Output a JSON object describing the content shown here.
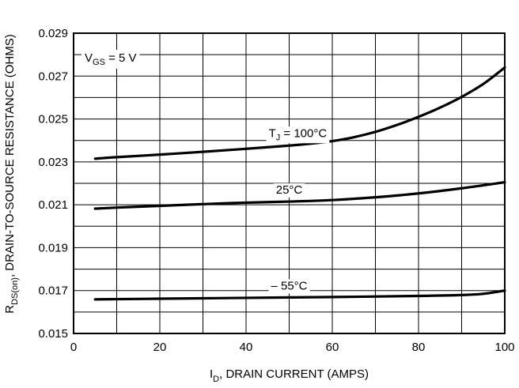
{
  "chart_data": {
    "type": "line",
    "xlabel": {
      "main": "I",
      "sub": "D",
      "rest": ", DRAIN CURRENT (AMPS)"
    },
    "ylabel": {
      "main": "R",
      "sub": "DS(on)",
      "rest": ", DRAIN-TO-SOURCE RESISTANCE (OHMS)"
    },
    "xlim": [
      0,
      100
    ],
    "ylim": [
      0.015,
      0.029
    ],
    "x_ticks": [
      0,
      20,
      40,
      60,
      80,
      100
    ],
    "x_tick_labels": [
      "0",
      "20",
      "40",
      "60",
      "80",
      "100"
    ],
    "y_ticks": [
      0.015,
      0.017,
      0.019,
      0.021,
      0.023,
      0.025,
      0.027,
      0.029
    ],
    "y_tick_labels": [
      "0.015",
      "0.017",
      "0.019",
      "0.021",
      "0.023",
      "0.025",
      "0.027",
      "0.029"
    ],
    "x_grid_step": 10,
    "y_grid_step": 0.001,
    "grid": true,
    "annotation": {
      "main": "V",
      "sub": "GS",
      "rest": " = 5 V"
    },
    "series": [
      {
        "name": "T_J = 100°C",
        "label": {
          "main": "T",
          "sub": "J",
          "rest": " = 100°C"
        },
        "x": [
          5,
          10,
          20,
          30,
          40,
          50,
          55,
          60,
          65,
          70,
          75,
          80,
          85,
          90,
          95,
          100
        ],
        "y": [
          0.02315,
          0.02322,
          0.02334,
          0.02347,
          0.02361,
          0.02376,
          0.02385,
          0.02397,
          0.02415,
          0.0244,
          0.02472,
          0.0251,
          0.02553,
          0.02603,
          0.02663,
          0.0274
        ]
      },
      {
        "name": "25°C",
        "label": {
          "main": "25°C",
          "sub": "",
          "rest": ""
        },
        "x": [
          5,
          10,
          20,
          30,
          40,
          50,
          60,
          70,
          80,
          90,
          100
        ],
        "y": [
          0.02082,
          0.02087,
          0.02095,
          0.02103,
          0.0211,
          0.02115,
          0.02122,
          0.02135,
          0.02153,
          0.02177,
          0.02205
        ]
      },
      {
        "name": "– 55°C",
        "label": {
          "main": "– 55°C",
          "sub": "",
          "rest": ""
        },
        "x": [
          5,
          20,
          40,
          60,
          80,
          90,
          95,
          100
        ],
        "y": [
          0.01659,
          0.01662,
          0.01666,
          0.0167,
          0.01675,
          0.01679,
          0.01685,
          0.017
        ]
      }
    ]
  }
}
